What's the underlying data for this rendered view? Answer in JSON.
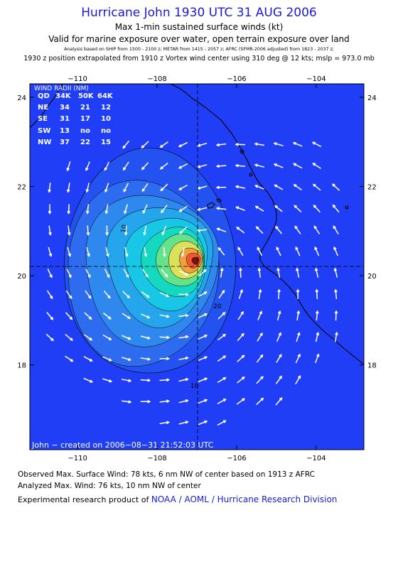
{
  "header": {
    "title": "Hurricane John 1930 UTC 31 AUG 2006",
    "subtitle1": "Max 1-min sustained surface winds (kt)",
    "subtitle2": "Valid for marine exposure over water, open terrain exposure over land",
    "analysis_note": "Analysis based on  SHIP from 1500 - 2100 z;  METAR from 1415 - 2057 z;  AFRC (SFMR-2006 adjusted) from 1823 - 2037 z;",
    "position_note": "1930 z position extrapolated from 1910 z Vortex wind center using 310 deg @ 12 kts; mslp = 973.0 mb"
  },
  "map": {
    "lon_range": [
      -111.2,
      -102.8
    ],
    "lat_range": [
      16.1,
      24.3
    ],
    "lon_ticks": [
      -110,
      -108,
      -106,
      -104
    ],
    "lat_ticks": [
      18,
      20,
      22,
      24
    ],
    "lon_tick_labels": [
      "−110",
      "−108",
      "−106",
      "−104"
    ],
    "lat_tick_labels": [
      "18",
      "20",
      "22",
      "24"
    ],
    "center": {
      "lon": -107.0,
      "lat": 20.35
    },
    "contour_labels": [
      "10",
      "20",
      "10"
    ],
    "ocean_color": "#1f3ef5",
    "land_color": "#1f3ef5",
    "credit": "John − created on 2006−08−31 21:52:03 UTC",
    "contour_fills": [
      "#2352f0",
      "#2d6bef",
      "#2f88ee",
      "#25a6ec",
      "#18c6e6",
      "#14d9c0",
      "#66e38a",
      "#d9e25a",
      "#f0a040",
      "#ee5a2d",
      "#7a1010"
    ]
  },
  "wind_radii": {
    "title": "WIND RADII (NM)",
    "header": [
      "QD",
      "34K",
      "50K",
      "64K"
    ],
    "rows": [
      [
        "NE",
        "34",
        "21",
        "12"
      ],
      [
        "SE",
        "31",
        "17",
        "10"
      ],
      [
        "SW",
        "13",
        "no",
        "no"
      ],
      [
        "NW",
        "37",
        "22",
        "15"
      ]
    ]
  },
  "footer": {
    "observed": "Observed Max. Surface Wind: 78 kts, 6 nm NW of center based on 1913 z AFRC",
    "analyzed": "Analyzed Max. Wind: 76 kts, 10 nm NW of center",
    "credit_prefix": "Experimental research product of",
    "credit_org": "NOAA / AOML / Hurricane Research Division"
  }
}
